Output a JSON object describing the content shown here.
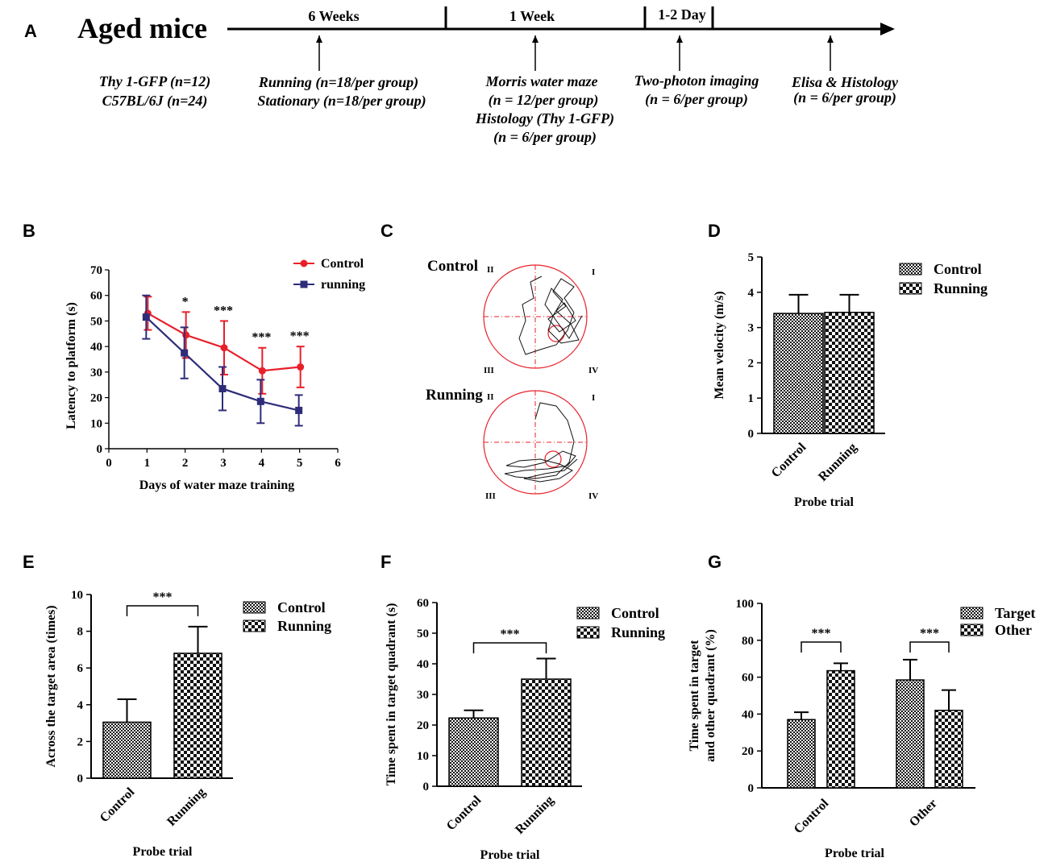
{
  "panel_labels": {
    "A": "A",
    "B": "B",
    "C": "C",
    "D": "D",
    "E": "E",
    "F": "F",
    "G": "G"
  },
  "timeline": {
    "title": "Aged mice",
    "phases": [
      "6  Weeks",
      "1  Week",
      "1-2 Day"
    ],
    "groups": [
      "Thy 1-GFP (n=12)",
      "C57BL/6J (n=24)"
    ],
    "events": [
      {
        "lines": [
          "Running (n=18/per group)",
          "Stationary (n=18/per group)"
        ]
      },
      {
        "lines": [
          "Morris water maze",
          "(n = 12/per group)",
          "Histology (Thy 1-GFP)",
          "(n = 6/per group)"
        ]
      },
      {
        "lines": [
          "Two-photon imaging",
          "(n = 6/per group)"
        ]
      },
      {
        "lines": [
          "Elisa & Histology",
          "(n = 6/per group)"
        ]
      }
    ]
  },
  "tracks": {
    "labels": [
      "Control",
      "Running"
    ],
    "quadrants": [
      "II",
      "I",
      "III",
      "IV"
    ]
  },
  "chart_data": [
    {
      "id": "B",
      "type": "line",
      "xlabel": "Days of water maze training",
      "ylabel": "Latency to platform (s)",
      "xlim": [
        0,
        6
      ],
      "ylim": [
        0,
        70
      ],
      "xticks": [
        "0",
        "1",
        "2",
        "3",
        "4",
        "5",
        "6"
      ],
      "yticks": [
        "0",
        "10",
        "20",
        "30",
        "40",
        "50",
        "60",
        "70"
      ],
      "x": [
        1,
        2,
        3,
        4,
        5
      ],
      "series": [
        {
          "name": "Control",
          "color": "#e8202a",
          "marker": "circle",
          "values": [
            53,
            44.5,
            39.5,
            30.5,
            32
          ],
          "err": [
            6.5,
            9,
            10.5,
            9,
            8
          ]
        },
        {
          "name": "running",
          "color": "#2e2c7a",
          "marker": "square",
          "values": [
            51.5,
            37.5,
            23.5,
            18.5,
            15
          ],
          "err": [
            8.5,
            10,
            8.5,
            8.5,
            6
          ]
        }
      ],
      "annotations": [
        "*",
        "***",
        "***",
        "***"
      ]
    },
    {
      "id": "D",
      "type": "bar",
      "categories": [
        "Control",
        "Running"
      ],
      "values": [
        3.4,
        3.43
      ],
      "err": [
        0.53,
        0.5
      ],
      "ylabel": "Mean velocity (m/s)",
      "xlabel": "Probe trial",
      "ylim": [
        0,
        5
      ],
      "yticks": [
        "0",
        "1",
        "2",
        "3",
        "4",
        "5"
      ],
      "legend": [
        "Control",
        "Running"
      ]
    },
    {
      "id": "E",
      "type": "bar",
      "categories": [
        "Control",
        "Running"
      ],
      "values": [
        3.05,
        6.8
      ],
      "err": [
        1.25,
        1.45
      ],
      "ylabel": "Across the target area (times)",
      "xlabel": "Probe trial",
      "ylim": [
        0,
        10
      ],
      "yticks": [
        "0",
        "2",
        "4",
        "6",
        "8",
        "10"
      ],
      "legend": [
        "Control",
        "Running"
      ],
      "significance": "***"
    },
    {
      "id": "F",
      "type": "bar",
      "categories": [
        "Control",
        "Running"
      ],
      "values": [
        22.3,
        35
      ],
      "err": [
        2.5,
        6.7
      ],
      "ylabel": "Time spent in target quadrant  (s)",
      "xlabel": "Probe trial",
      "ylim": [
        0,
        60
      ],
      "yticks": [
        "0",
        "10",
        "20",
        "30",
        "40",
        "50",
        "60"
      ],
      "legend": [
        "Control",
        "Running"
      ],
      "significance": "***"
    },
    {
      "id": "G",
      "type": "bar",
      "categories": [
        "Control",
        "Other"
      ],
      "series": [
        {
          "name": "Target",
          "values": [
            37,
            58.5
          ],
          "err": [
            4,
            11
          ]
        },
        {
          "name": "Other",
          "values": [
            63.5,
            42
          ],
          "err": [
            4,
            11
          ]
        }
      ],
      "ylabel": [
        "Time spent in target",
        "and other quadrant (%)"
      ],
      "xlabel": "Probe trial",
      "ylim": [
        0,
        100
      ],
      "yticks": [
        "0",
        "20",
        "40",
        "60",
        "80",
        "100"
      ],
      "legend": [
        "Target",
        "Other"
      ],
      "significance": [
        "***",
        "***"
      ]
    }
  ]
}
